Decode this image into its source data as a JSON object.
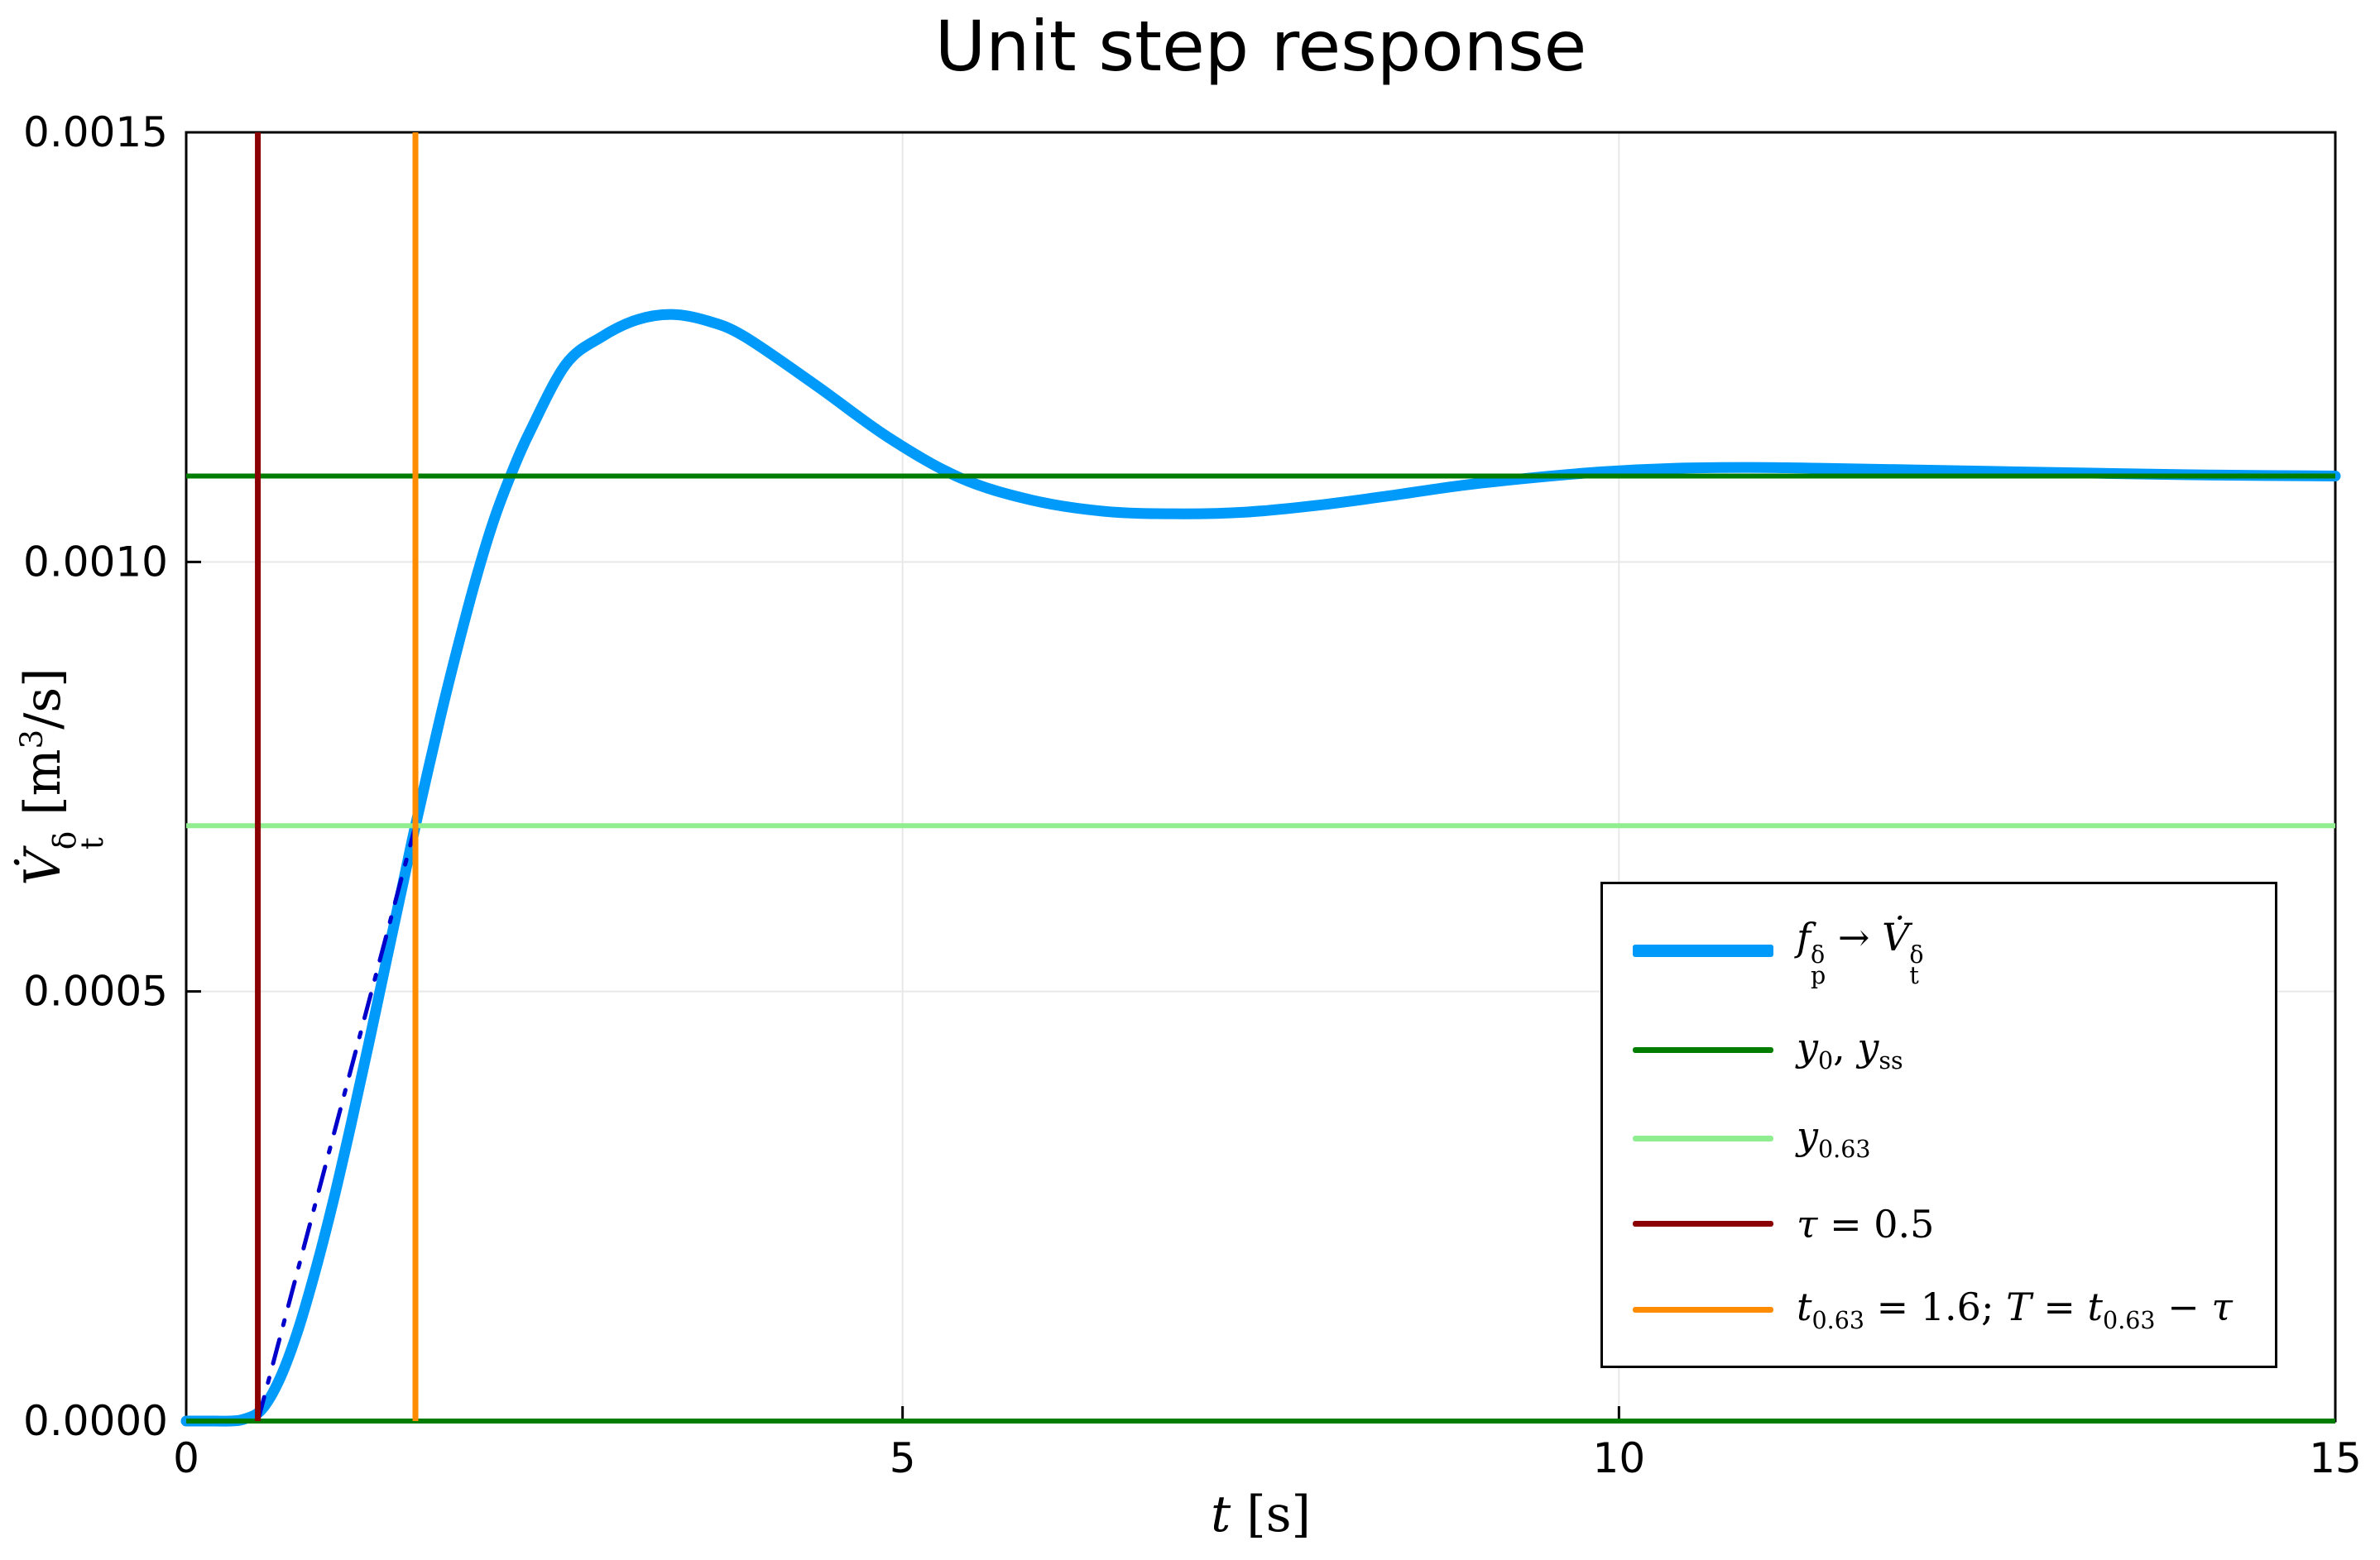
{
  "chart_data": {
    "type": "line",
    "title": "Unit step response",
    "xlabel": "t [s]",
    "ylabel": "V̇_t^δ [m³/s]",
    "xlim": [
      0,
      15
    ],
    "ylim": [
      0,
      0.0015
    ],
    "xticks": [
      0,
      5,
      10,
      15
    ],
    "xtick_labels": [
      "0",
      "5",
      "10",
      "15"
    ],
    "yticks": [
      0,
      0.0005,
      0.001,
      0.0015
    ],
    "ytick_labels": [
      "0.0000",
      "0.0005",
      "0.0010",
      "0.0015"
    ],
    "grid": true,
    "frame_color": "#000000",
    "grid_color": "#e8e8e8",
    "xlabel_rich": [
      {
        "t": "t",
        "i": true
      },
      {
        "t": " [s]"
      }
    ],
    "ylabel_rich": [
      {
        "t": "V̇",
        "i": true
      },
      {
        "sup": "δ",
        "sub": "t"
      },
      {
        "t": " [m"
      },
      {
        "sup": "3"
      },
      {
        "t": "/s]"
      }
    ],
    "annotations": {
      "tau": 0.5,
      "t063": 1.6,
      "y0": 0.0,
      "yss": 0.0011,
      "y063": 0.000693
    },
    "series": [
      {
        "name": "step-response",
        "kind": "line",
        "color": "#009AFA",
        "width": 13,
        "dash": "solid",
        "points": [
          [
            0,
            0
          ],
          [
            0.2,
            0
          ],
          [
            0.3,
            0
          ],
          [
            0.4,
            2e-06
          ],
          [
            0.525,
            1.3e-05
          ],
          [
            0.65,
            4.8e-05
          ],
          [
            0.775,
            0.000103
          ],
          [
            0.9,
            0.000174
          ],
          [
            1.025,
            0.000255
          ],
          [
            1.15,
            0.000345
          ],
          [
            1.275,
            0.00044
          ],
          [
            1.4,
            0.000538
          ],
          [
            1.525,
            0.000635
          ],
          [
            1.6,
            0.000693
          ],
          [
            1.775,
            0.00082
          ],
          [
            1.9,
            0.000904
          ],
          [
            2.025,
            0.000982
          ],
          [
            2.15,
            0.00105
          ],
          [
            2.275,
            0.001105
          ],
          [
            2.4,
            0.001152
          ],
          [
            2.65,
            0.00123
          ],
          [
            2.9,
            0.001262
          ],
          [
            3.15,
            0.001282
          ],
          [
            3.4,
            0.001288
          ],
          [
            3.65,
            0.00128
          ],
          [
            3.9,
            0.001262
          ],
          [
            4.4,
            0.001205
          ],
          [
            4.9,
            0.001145
          ],
          [
            5.4,
            0.001098
          ],
          [
            5.9,
            0.001072
          ],
          [
            6.4,
            0.001059
          ],
          [
            6.9,
            0.001056
          ],
          [
            7.4,
            0.001058
          ],
          [
            7.9,
            0.001066
          ],
          [
            8.4,
            0.001077
          ],
          [
            8.9,
            0.001089
          ],
          [
            9.4,
            0.001098
          ],
          [
            9.9,
            0.001105
          ],
          [
            10.4,
            0.001109
          ],
          [
            10.9,
            0.00111
          ],
          [
            11.4,
            0.001109
          ],
          [
            12.4,
            0.001106
          ],
          [
            13.4,
            0.001103
          ],
          [
            14.2,
            0.001101
          ],
          [
            15,
            0.0011
          ]
        ]
      },
      {
        "name": "tangent",
        "kind": "line",
        "color": "#0000CC",
        "width": 5,
        "dash": "dashdot",
        "points": [
          [
            0.5,
            0
          ],
          [
            1.6,
            0.000693
          ]
        ]
      },
      {
        "name": "y0-yss",
        "kind": "hline",
        "color": "#007D00",
        "width": 6,
        "values": [
          0,
          0.0011
        ]
      },
      {
        "name": "y063",
        "kind": "hline",
        "color": "#90EE90",
        "width": 6,
        "values": [
          0.000693
        ]
      },
      {
        "name": "tau",
        "kind": "vline",
        "color": "#8B0000",
        "width": 7,
        "values": [
          0.5
        ]
      },
      {
        "name": "t063",
        "kind": "vline",
        "color": "#FF8C00",
        "width": 7,
        "values": [
          1.6
        ]
      }
    ],
    "legend": {
      "position": "inside-lower-right",
      "entries": [
        {
          "color": "#009AFA",
          "sample_height": 15,
          "label_text": "f_p^δ → V̇_t^δ",
          "label": [
            {
              "t": "f",
              "i": true
            },
            {
              "sup": "δ",
              "sub": "p"
            },
            {
              "t": " → "
            },
            {
              "t": "V̇",
              "i": true
            },
            {
              "sup": "δ",
              "sub": "t"
            }
          ]
        },
        {
          "color": "#007D00",
          "sample_height": 7,
          "label_text": "y_0, y_ss",
          "label": [
            {
              "t": "y",
              "i": true
            },
            {
              "sub": "0"
            },
            {
              "t": ", "
            },
            {
              "t": "y",
              "i": true
            },
            {
              "sub": "ss"
            }
          ]
        },
        {
          "color": "#90EE90",
          "sample_height": 7,
          "label_text": "y_0.63",
          "label": [
            {
              "t": "y",
              "i": true
            },
            {
              "sub": "0.63"
            }
          ]
        },
        {
          "color": "#8B0000",
          "sample_height": 7,
          "label_text": "τ = 0.5",
          "label": [
            {
              "t": "τ",
              "i": true
            },
            {
              "t": " = 0.5"
            }
          ]
        },
        {
          "color": "#FF8C00",
          "sample_height": 7,
          "label_text": "t_0.63 = 1.6; T = t_0.63 − τ",
          "label": [
            {
              "t": "t",
              "i": true
            },
            {
              "sub": "0.63"
            },
            {
              "t": " = 1.6; "
            },
            {
              "t": "T",
              "i": true
            },
            {
              "t": " = "
            },
            {
              "t": "t",
              "i": true
            },
            {
              "sub": "0.63"
            },
            {
              "t": " − "
            },
            {
              "t": "τ",
              "i": true
            }
          ]
        }
      ]
    }
  }
}
